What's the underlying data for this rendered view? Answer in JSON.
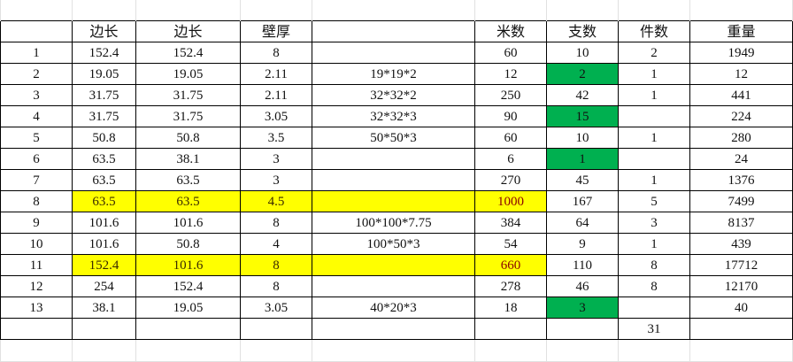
{
  "colors": {
    "highlight_yellow": "#ffff00",
    "highlight_green": "#00b050"
  },
  "header": [
    "",
    "边长",
    "边长",
    "壁厚",
    "",
    "米数",
    "支数",
    "件数",
    "重量"
  ],
  "rows": [
    {
      "cells": [
        "1",
        "152.4",
        "152.4",
        "8",
        "",
        "60",
        "10",
        "2",
        "1949"
      ]
    },
    {
      "cells": [
        "2",
        "19.05",
        "19.05",
        "2.11",
        "19*19*2",
        "12",
        "2",
        "1",
        "12"
      ],
      "green": [
        6
      ]
    },
    {
      "cells": [
        "3",
        "31.75",
        "31.75",
        "2.11",
        "32*32*2",
        "250",
        "42",
        "1",
        "441"
      ]
    },
    {
      "cells": [
        "4",
        "31.75",
        "31.75",
        "3.05",
        "32*32*3",
        "90",
        "15",
        "",
        "224"
      ],
      "green": [
        6
      ]
    },
    {
      "cells": [
        "5",
        "50.8",
        "50.8",
        "3.5",
        "50*50*3",
        "60",
        "10",
        "1",
        "280"
      ]
    },
    {
      "cells": [
        "6",
        "63.5",
        "38.1",
        "3",
        "",
        "6",
        "1",
        "",
        "24"
      ],
      "green": [
        6
      ]
    },
    {
      "cells": [
        "7",
        "63.5",
        "63.5",
        "3",
        "",
        "270",
        "45",
        "1",
        "1376"
      ]
    },
    {
      "cells": [
        "8",
        "63.5",
        "63.5",
        "4.5",
        "",
        "1000",
        "167",
        "5",
        "7499"
      ],
      "yellow": [
        1,
        2,
        3,
        4,
        5
      ]
    },
    {
      "cells": [
        "9",
        "101.6",
        "101.6",
        "8",
        "100*100*7.75",
        "384",
        "64",
        "3",
        "8137"
      ]
    },
    {
      "cells": [
        "10",
        "101.6",
        "50.8",
        "4",
        "100*50*3",
        "54",
        "9",
        "1",
        "439"
      ]
    },
    {
      "cells": [
        "11",
        "152.4",
        "101.6",
        "8",
        "",
        "660",
        "110",
        "8",
        "17712"
      ],
      "yellow": [
        1,
        2,
        3,
        4,
        5
      ]
    },
    {
      "cells": [
        "12",
        "254",
        "152.4",
        "8",
        "",
        "278",
        "46",
        "8",
        "12170"
      ]
    },
    {
      "cells": [
        "13",
        "38.1",
        "19.05",
        "3.05",
        "40*20*3",
        "18",
        "3",
        "",
        "40"
      ],
      "green": [
        6
      ]
    },
    {
      "cells": [
        "",
        "",
        "",
        "",
        "",
        "",
        "",
        "31",
        ""
      ]
    }
  ]
}
